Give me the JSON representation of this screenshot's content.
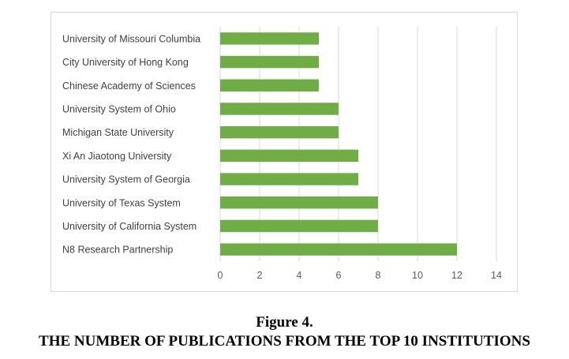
{
  "figure": {
    "number": "Figure 4.",
    "title": "THE NUMBER OF PUBLICATIONS FROM THE TOP 10 INSTITUTIONS"
  },
  "chart_data": {
    "type": "bar",
    "orientation": "horizontal",
    "categories": [
      "University of Missouri Columbia",
      "City University of Hong Kong",
      "Chinese Academy of Sciences",
      "University System of Ohio",
      "Michigan State University",
      "Xi An Jiaotong University",
      "University System of Georgia",
      "University of Texas System",
      "University of California System",
      "N8 Research Partnership"
    ],
    "values": [
      5,
      5,
      5,
      6,
      6,
      7,
      7,
      8,
      8,
      12
    ],
    "xlim": [
      0,
      14
    ],
    "xticks": [
      "0",
      "2",
      "4",
      "6",
      "8",
      "10",
      "12",
      "14"
    ],
    "grid": "vertical",
    "legend": "none",
    "bar_color": "#70ad47",
    "grid_color": "#d9d9d9"
  }
}
